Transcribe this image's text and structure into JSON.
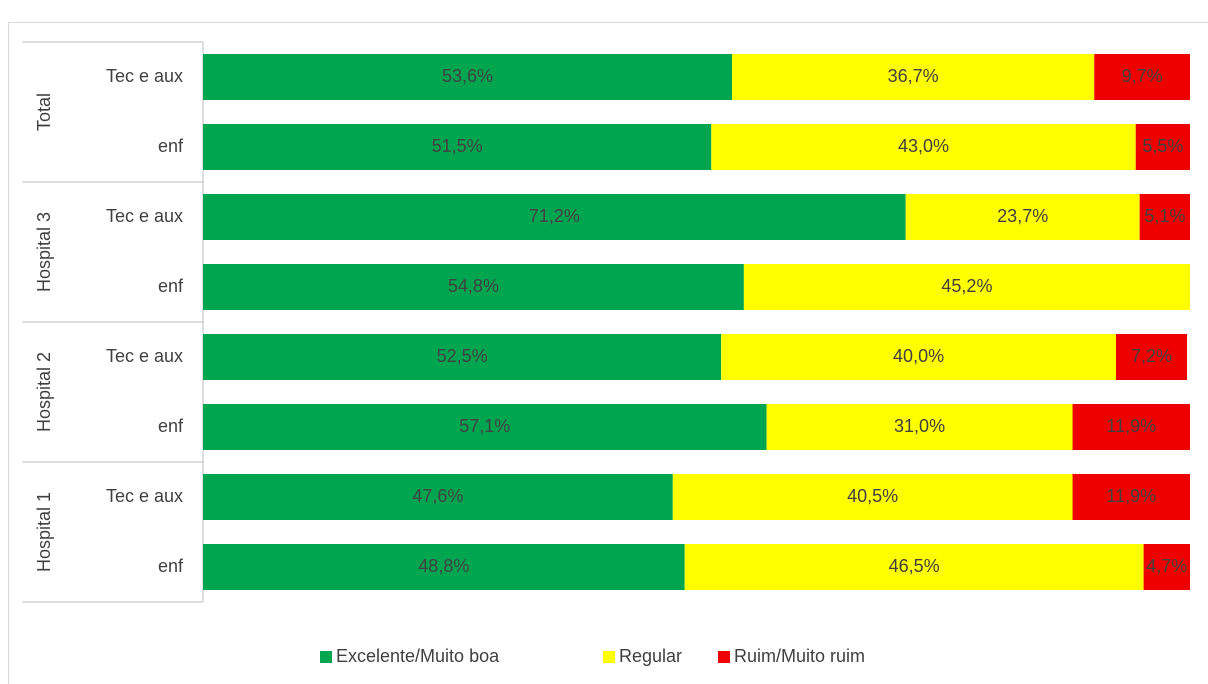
{
  "chart_data": {
    "type": "stacked-bar-horizontal",
    "groups": [
      "Total",
      "Hospital 3",
      "Hospital 2",
      "Hospital 1"
    ],
    "categories": [
      "Tec e aux",
      "enf",
      "Tec e aux",
      "enf",
      "Tec e aux",
      "enf",
      "Tec e aux",
      "enf"
    ],
    "xlim": [
      0,
      100
    ],
    "series": [
      {
        "name": "Excelente/Muito boa",
        "color": "#00a550",
        "values": [
          53.6,
          51.5,
          71.2,
          54.8,
          52.5,
          57.1,
          47.6,
          48.8
        ],
        "value_labels": [
          "53,6%",
          "51,5%",
          "71,2%",
          "54,8%",
          "52,5%",
          "57,1%",
          "47,6%",
          "48,8%"
        ]
      },
      {
        "name": "Regular",
        "color": "#ffff00",
        "values": [
          36.7,
          43.0,
          23.7,
          45.2,
          40.0,
          31.0,
          40.5,
          46.5
        ],
        "value_labels": [
          "36,7%",
          "43,0%",
          "23,7%",
          "45,2%",
          "40,0%",
          "31,0%",
          "40,5%",
          "46,5%"
        ]
      },
      {
        "name": "Ruim/Muito ruim",
        "color": "#ee0000",
        "values": [
          9.7,
          5.5,
          5.1,
          null,
          7.2,
          11.9,
          11.9,
          4.7
        ],
        "value_labels": [
          "9,7%",
          "5,5%",
          "5,1%",
          null,
          "7,2%",
          "11,9%",
          "11,9%",
          "4,7%"
        ]
      }
    ],
    "legend": "bottom"
  }
}
